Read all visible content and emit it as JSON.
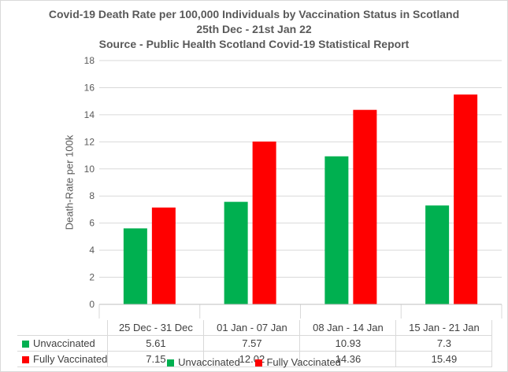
{
  "chart_data": {
    "type": "bar",
    "title": "Covid-19 Death Rate per 100,000 Individuals by Vaccination Status in Scotland",
    "subtitle": "25th Dec - 21st Jan 22",
    "source": "Source - Public Health Scotland Covid-19 Statistical Report",
    "xlabel": "",
    "ylabel": "Death-Rate per 100k",
    "ylim": [
      0,
      18
    ],
    "yticks": [
      "0",
      "2",
      "4",
      "6",
      "8",
      "10",
      "12",
      "14",
      "16",
      "18"
    ],
    "grid": true,
    "legend_position": "bottom",
    "categories": [
      "25 Dec - 31 Dec",
      "01 Jan - 07 Jan",
      "08 Jan - 14 Jan",
      "15 Jan - 21 Jan"
    ],
    "series": [
      {
        "name": "Unvaccinated",
        "color": "#00b050",
        "values": [
          5.61,
          7.57,
          10.93,
          7.3
        ],
        "labels": [
          "5.61",
          "7.57",
          "10.93",
          "7.3"
        ]
      },
      {
        "name": "Fully Vaccinated",
        "color": "#ff0000",
        "values": [
          7.15,
          12.02,
          14.36,
          15.49
        ],
        "labels": [
          "7.15",
          "12.02",
          "14.36",
          "15.49"
        ]
      }
    ]
  }
}
